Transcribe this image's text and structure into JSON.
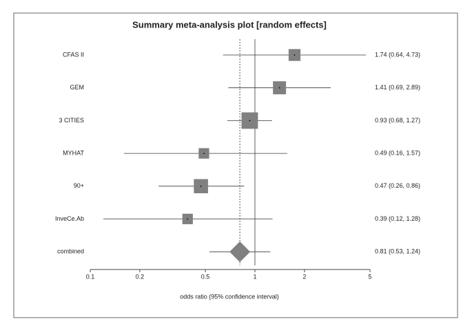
{
  "chart_data": {
    "type": "forest",
    "title": "Summary meta-analysis plot [random effects]",
    "x_label": "odds ratio (95% confidence interval)",
    "categories": [
      "CFAS II",
      "GEM",
      "3 CITIES",
      "MYHAT",
      "90+",
      "InveCe.Ab",
      "combined"
    ],
    "values": [
      1.74,
      1.41,
      0.93,
      0.49,
      0.47,
      0.39,
      0.81
    ],
    "lower": [
      0.64,
      0.69,
      0.68,
      0.16,
      0.26,
      0.12,
      0.53
    ],
    "upper": [
      4.73,
      2.89,
      1.27,
      1.57,
      0.86,
      1.28,
      1.24
    ],
    "value_labels": [
      "1.74 (0.64, 4.73)",
      "1.41 (0.69, 2.89)",
      "0.93 (0.68, 1.27)",
      "0.49 (0.16, 1.57)",
      "0.47 (0.26, 0.86)",
      "0.39 (0.12, 1.28)",
      "0.81 (0.53, 1.24)"
    ],
    "weights": [
      14,
      17,
      27,
      11,
      20,
      11,
      null
    ],
    "xlim": [
      0.1,
      5
    ],
    "xticks": [
      0.1,
      0.2,
      0.5,
      1,
      2,
      5
    ],
    "log_x": true,
    "reference": 1,
    "color": "#808080"
  }
}
